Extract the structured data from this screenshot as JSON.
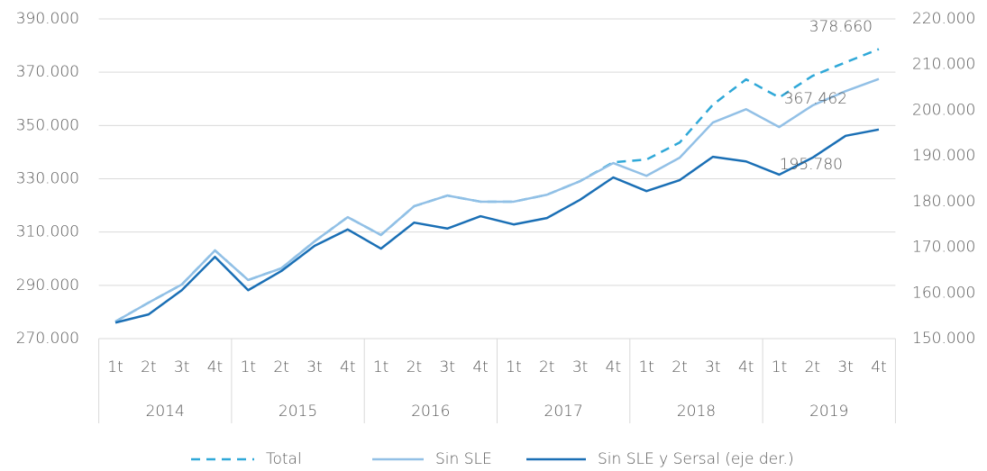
{
  "chart_data": {
    "type": "line",
    "categories": [
      "1t",
      "2t",
      "3t",
      "4t",
      "1t",
      "2t",
      "3t",
      "4t",
      "1t",
      "2t",
      "3t",
      "4t",
      "1t",
      "2t",
      "3t",
      "4t",
      "1t",
      "2t",
      "3t",
      "4t",
      "1t",
      "2t",
      "3t",
      "4t"
    ],
    "years": [
      "2014",
      "2015",
      "2016",
      "2017",
      "2018",
      "2019"
    ],
    "series": [
      {
        "name": "Total",
        "color": "#2fa8d8",
        "dashed": true,
        "values": [
          276400,
          283500,
          290300,
          303100,
          292000,
          296400,
          306500,
          315600,
          308900,
          319700,
          323700,
          321400,
          321400,
          324000,
          329100,
          336200,
          337200,
          343600,
          357800,
          367300,
          360500,
          368600,
          373700,
          378660
        ],
        "value_labels": [
          null,
          null,
          null,
          null,
          null,
          null,
          null,
          null,
          null,
          null,
          null,
          null,
          null,
          null,
          null,
          null,
          null,
          null,
          null,
          null,
          null,
          null,
          null,
          "378.660"
        ]
      },
      {
        "name": "Sin SLE",
        "color": "#92c0e6",
        "values": [
          276400,
          283500,
          290300,
          303100,
          292000,
          296400,
          306500,
          315600,
          308900,
          319700,
          323700,
          321400,
          321400,
          324000,
          329100,
          335900,
          331100,
          337900,
          351100,
          356100,
          349400,
          357500,
          362900,
          367462
        ],
        "value_labels": [
          null,
          null,
          null,
          null,
          null,
          null,
          null,
          null,
          null,
          null,
          null,
          null,
          null,
          null,
          null,
          null,
          null,
          null,
          null,
          null,
          null,
          null,
          null,
          "367.462"
        ]
      },
      {
        "name": "Sin SLE y Sersal (eje der.)",
        "color": "#1a6fb5",
        "axis": "y2",
        "values": [
          153500,
          155300,
          160600,
          167900,
          160600,
          164800,
          170300,
          173900,
          169700,
          175400,
          174100,
          176800,
          175000,
          176400,
          180400,
          185300,
          182300,
          184700,
          189800,
          188800,
          185900,
          189600,
          194400,
          195780
        ],
        "value_labels": [
          null,
          null,
          null,
          null,
          null,
          null,
          null,
          null,
          null,
          null,
          null,
          null,
          null,
          null,
          null,
          null,
          null,
          null,
          null,
          null,
          null,
          null,
          null,
          "195.780"
        ]
      }
    ],
    "ylim": [
      270000,
      390000
    ],
    "yticks": [
      {
        "value": 270000,
        "label": "270.000"
      },
      {
        "value": 290000,
        "label": "290.000"
      },
      {
        "value": 310000,
        "label": "310.000"
      },
      {
        "value": 330000,
        "label": "330.000"
      },
      {
        "value": 350000,
        "label": "350.000"
      },
      {
        "value": 370000,
        "label": "370.000"
      },
      {
        "value": 390000,
        "label": "390.000"
      }
    ],
    "y2lim": [
      150000,
      220000
    ],
    "y2ticks": [
      {
        "value": 150000,
        "label": "150.000"
      },
      {
        "value": 160000,
        "label": "160.000"
      },
      {
        "value": 170000,
        "label": "170.000"
      },
      {
        "value": 180000,
        "label": "180.000"
      },
      {
        "value": 190000,
        "label": "190.000"
      },
      {
        "value": 200000,
        "label": "200.000"
      },
      {
        "value": 210000,
        "label": "210.000"
      },
      {
        "value": 220000,
        "label": "220.000"
      }
    ],
    "grid": true,
    "legend": "bottom"
  }
}
